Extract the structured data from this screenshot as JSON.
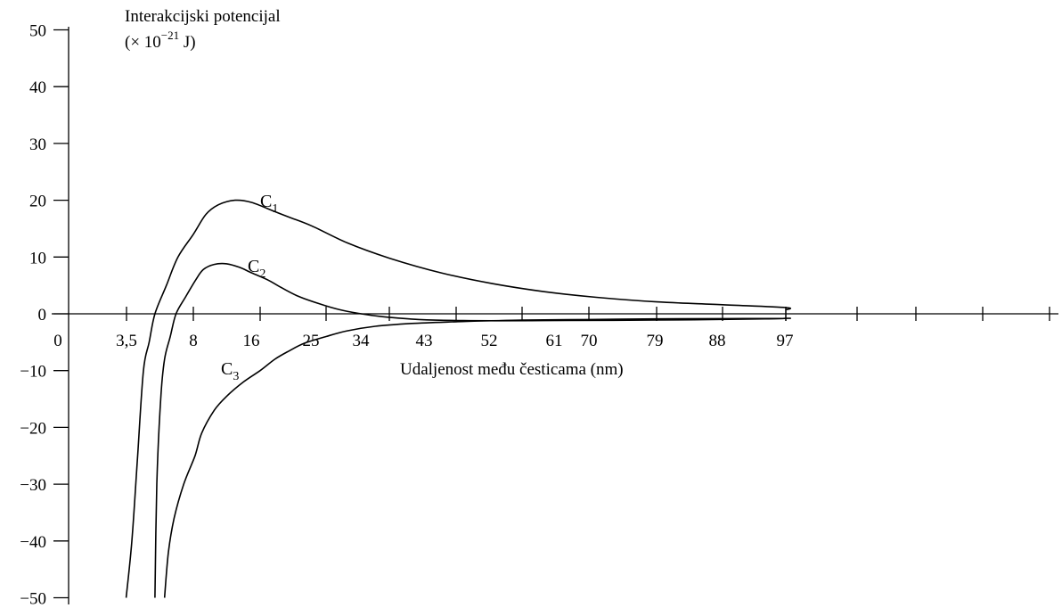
{
  "chart_data": {
    "type": "line",
    "ylabel_line1": "Interakcijski potencijal",
    "ylabel_line2_prefix": "(× 10",
    "ylabel_line2_exp": "−21",
    "ylabel_line2_suffix": " J)",
    "xlabel": "Udaljenost među česticama (nm)",
    "ylim": [
      -50,
      50
    ],
    "yticks": [
      50,
      40,
      30,
      20,
      10,
      0,
      -10,
      -20,
      -30,
      -40,
      -50
    ],
    "ytick_labels": [
      "50",
      "40",
      "30",
      "20",
      "10",
      "0",
      "−10",
      "−20",
      "−30",
      "−40",
      "−50"
    ],
    "xticks": [
      0,
      3.5,
      8,
      16,
      25,
      34,
      43,
      52,
      61,
      70,
      79,
      88,
      97
    ],
    "xtick_labels": [
      "0",
      "3,5",
      "8",
      "16",
      "25",
      "34",
      "43",
      "52",
      "61",
      "70",
      "79",
      "88",
      "97"
    ],
    "extra_axis_ticks": 4,
    "grid": false,
    "legend": "none",
    "series": [
      {
        "name": "C1",
        "label_main": "C",
        "label_sub": "1",
        "points": [
          [
            4.5,
            -50
          ],
          [
            4.8,
            -40
          ],
          [
            5.1,
            -25
          ],
          [
            5.4,
            -10
          ],
          [
            5.7,
            -5
          ],
          [
            6.0,
            0
          ],
          [
            6.6,
            5
          ],
          [
            7.2,
            10
          ],
          [
            8.0,
            14
          ],
          [
            9.5,
            17.5
          ],
          [
            11,
            19.2
          ],
          [
            13,
            20
          ],
          [
            15,
            19.6
          ],
          [
            18,
            18
          ],
          [
            20,
            17
          ],
          [
            23,
            15.5
          ],
          [
            28,
            12.5
          ],
          [
            34,
            9.8
          ],
          [
            41,
            7.2
          ],
          [
            48,
            5.3
          ],
          [
            55,
            3.9
          ],
          [
            62,
            2.9
          ],
          [
            70,
            2.1
          ],
          [
            79,
            1.6
          ],
          [
            88,
            1.1
          ],
          [
            97,
            0.7
          ]
        ]
      },
      {
        "name": "C2",
        "label_main": "C",
        "label_sub": "2",
        "points": [
          [
            6.0,
            -50
          ],
          [
            6.1,
            -30
          ],
          [
            6.3,
            -15
          ],
          [
            6.5,
            -8
          ],
          [
            6.8,
            -4
          ],
          [
            7.1,
            0
          ],
          [
            7.6,
            3
          ],
          [
            8.3,
            6
          ],
          [
            9.2,
            7.8
          ],
          [
            10.5,
            8.7
          ],
          [
            12,
            8.8
          ],
          [
            13.5,
            8.2
          ],
          [
            15,
            7.2
          ],
          [
            17,
            6
          ],
          [
            18.5,
            4.9
          ],
          [
            21,
            3.2
          ],
          [
            24,
            1.8
          ],
          [
            27,
            0.7
          ],
          [
            30,
            0
          ],
          [
            33,
            -0.5
          ],
          [
            38,
            -1
          ],
          [
            44,
            -1.2
          ],
          [
            55,
            -1.2
          ],
          [
            70,
            -1.1
          ],
          [
            85,
            -0.9
          ],
          [
            97,
            -0.8
          ]
        ]
      },
      {
        "name": "C3",
        "label_main": "C",
        "label_sub": "3",
        "points": [
          [
            6.5,
            -50
          ],
          [
            6.7,
            -42
          ],
          [
            7.0,
            -36
          ],
          [
            7.5,
            -30
          ],
          [
            8.2,
            -25
          ],
          [
            9.0,
            -21
          ],
          [
            10.5,
            -17
          ],
          [
            12,
            -14.5
          ],
          [
            14,
            -12
          ],
          [
            16,
            -10
          ],
          [
            18,
            -8
          ],
          [
            20,
            -6.5
          ],
          [
            22,
            -5.2
          ],
          [
            25,
            -4
          ],
          [
            28,
            -3
          ],
          [
            32,
            -2.2
          ],
          [
            37,
            -1.7
          ],
          [
            43,
            -1.4
          ],
          [
            52,
            -1.1
          ],
          [
            61,
            -1
          ],
          [
            70,
            -0.9
          ],
          [
            79,
            -0.85
          ],
          [
            88,
            -0.8
          ],
          [
            97,
            -0.8
          ]
        ]
      }
    ]
  }
}
